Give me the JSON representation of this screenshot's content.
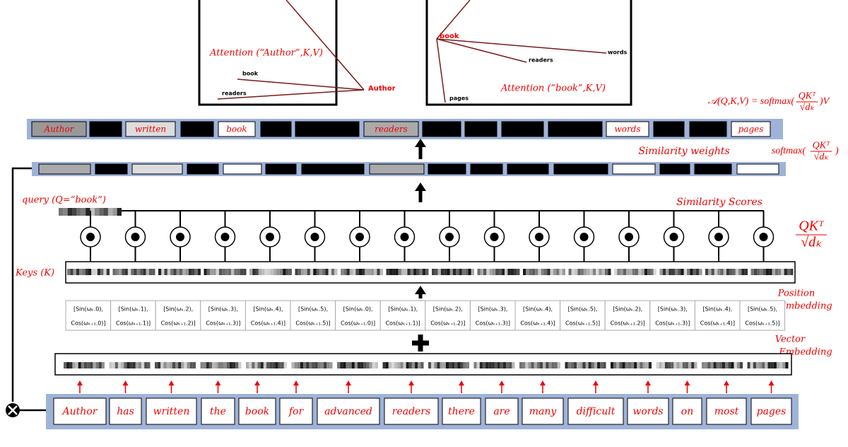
{
  "attention_panels": [
    {
      "title": "Attention (“Author”,K,V)",
      "query": "Author",
      "keys": [
        "book",
        "readers"
      ]
    },
    {
      "title": "Attention (“book”,K,V)",
      "query": "book",
      "keys": [
        "readers",
        "words",
        "pages"
      ]
    }
  ],
  "attention_formula": {
    "lhs": "𝒜(Q,K,V) = softmax(",
    "numerator": "QKᵀ",
    "denominator": "√dₖ",
    "rhs": ")V"
  },
  "output_tokens": [
    "Author",
    null,
    "written",
    null,
    "book",
    null,
    null,
    "readers",
    null,
    null,
    null,
    null,
    "words",
    null,
    null,
    "pages"
  ],
  "similarity_weights": {
    "label": "Similarity weights",
    "formula": {
      "lhs": "softmax(",
      "numerator": "QKᵀ",
      "denominator": "√dₖ",
      "rhs": ")"
    }
  },
  "query_label": "query (Q=“book”)",
  "similarity_scores": {
    "label": "Similarity Scores",
    "formula": {
      "numerator": "QKᵀ",
      "denominator": "√dₖ"
    }
  },
  "keys_label": "Keys (K)",
  "position_embedding": {
    "label": [
      "Position",
      "Embedding"
    ],
    "cells": [
      [
        "[Sin(ωₖ.0),",
        "Cos(ωₖ₊₁.0)]"
      ],
      [
        "[Sin(ωₖ.1),",
        "Cos(ωₖ₊₁.1)]"
      ],
      [
        "[Sin(ωₖ.2),",
        "Cos(ωₖ₊₁.2)]"
      ],
      [
        "[Sin(ωₖ.3),",
        "Cos(ωₖ₊₁.3)]"
      ],
      [
        "[Sin(ωₖ.4),",
        "Cos(ωₖ₊₁.4)]"
      ],
      [
        "[Sin(ωₖ.5),",
        "Cos(ωₖ₊₁.5)]"
      ],
      [
        "[Sin(ωₖ.0),",
        "Cos(ωₖ₊₁.0)]"
      ],
      [
        "[Sin(ωₖ.1),",
        "Cos(ωₖ₊₁.1)]"
      ],
      [
        "[Sin(ωₖ.2),",
        "Cos(ωₖ₊₁.2)]"
      ],
      [
        "[Sin(ωₖ.3),",
        "Cos(ωₖ₊₁.3)]"
      ],
      [
        "[Sin(ωₖ.4),",
        "Cos(ωₖ₊₁.4)]"
      ],
      [
        "[Sin(ωₖ.5),",
        "Cos(ωₖ₊₁.5)]"
      ],
      [
        "[Sin(ωₖ.2),",
        "Cos(ωₖ₊₁.2)]"
      ],
      [
        "[Sin(ωₖ.3),",
        "Cos(ωₖ₊₁.3)]"
      ],
      [
        "[Sin(ωₖ.4),",
        "Cos(ωₖ₊₁.4)]"
      ],
      [
        "[Sin(ωₖ.5),",
        "Cos(ωₖ₊₁.5)]"
      ]
    ]
  },
  "vector_embedding_label": [
    "Vector",
    "Embedding"
  ],
  "input_tokens": [
    "Author",
    "has",
    "written",
    "the",
    "book",
    "for",
    "advanced",
    "readers",
    "there",
    "are",
    "many",
    "difficult",
    "words",
    "on",
    "most",
    "pages"
  ]
}
